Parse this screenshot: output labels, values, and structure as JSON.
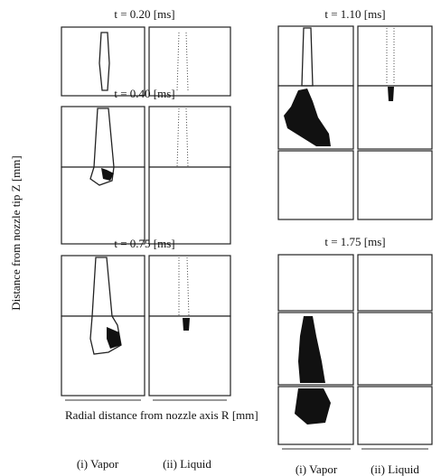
{
  "figure": {
    "y_axis_label": "Distance from nozzle tip Z [mm]",
    "x_axis_label": "Radial distance from nozzle axis R [mm]",
    "panels": [
      {
        "title": "t = 0.20 [ms]"
      },
      {
        "title": "t = 0.40 [ms]"
      },
      {
        "title": "t = 0.75 [ms]"
      },
      {
        "title": "t = 1.10 [ms]"
      },
      {
        "title": "t = 1.75 [ms]"
      }
    ],
    "left_column_labels": [
      "(i) Vapor",
      "(ii) Liquid"
    ],
    "right_column_labels": [
      "(i) Vapor",
      "(ii) Liquid"
    ]
  }
}
